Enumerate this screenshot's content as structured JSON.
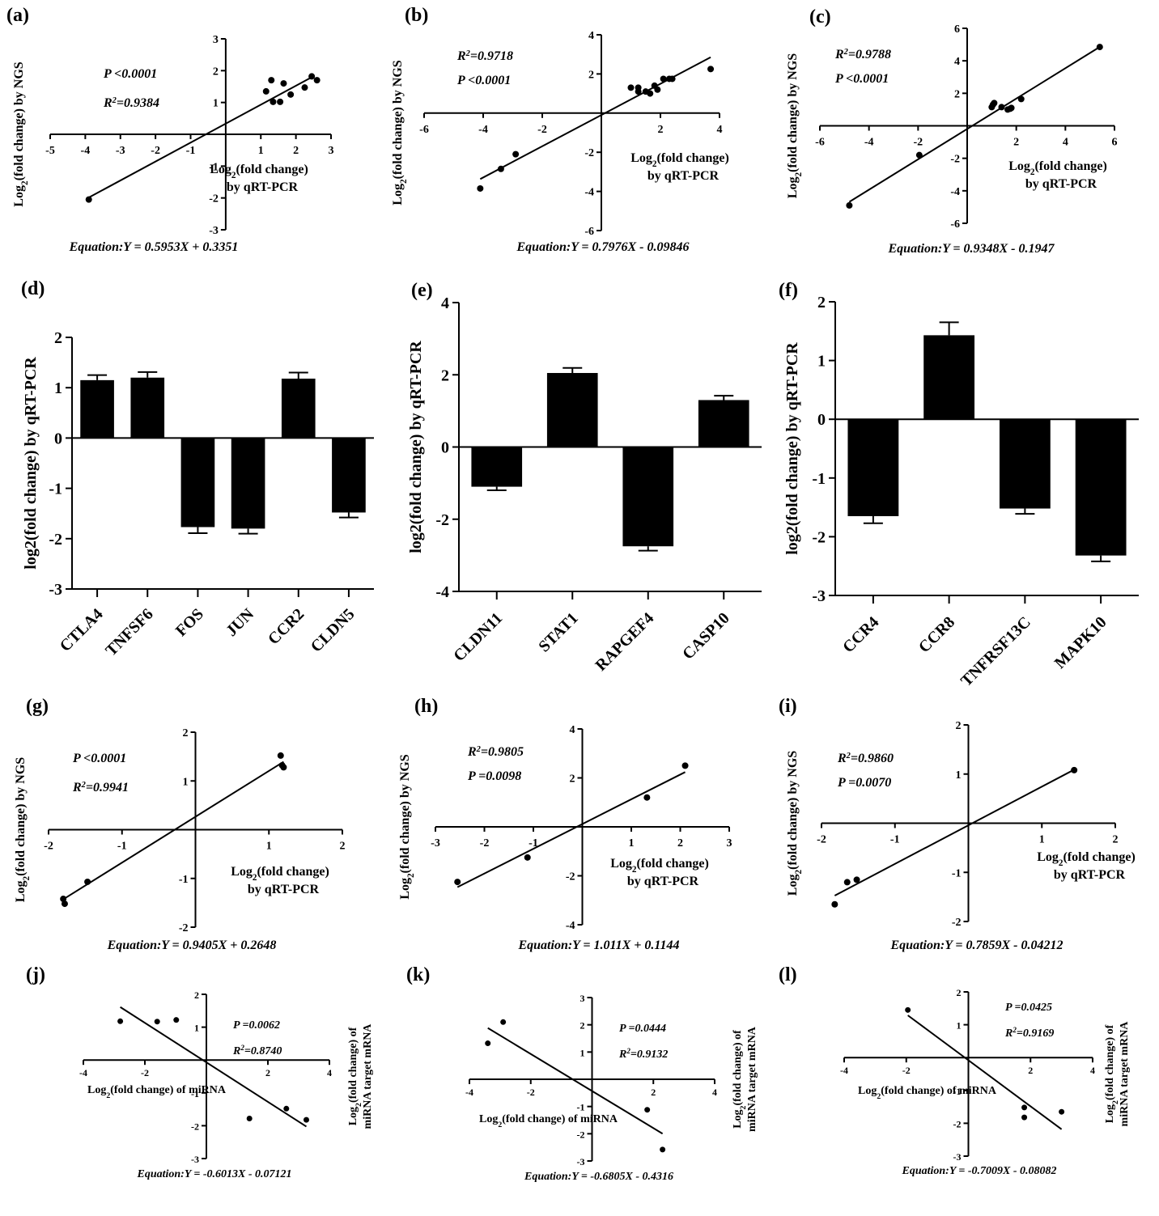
{
  "figure": {
    "colors": {
      "ink": "#000000",
      "background": "#ffffff"
    }
  },
  "chart_data": [
    {
      "id": "a",
      "panel_label": "(a)",
      "type": "scatter",
      "xlabel_main": "Log",
      "xlabel_sub": "2",
      "xlabel_rest": "(fold change)",
      "xlabel_line2": "by qRT-PCR",
      "ylabel_main": "Log",
      "ylabel_sub": "2",
      "ylabel_rest": "(fold change) by NGS",
      "xlim": [
        -5,
        3
      ],
      "ylim": [
        -3,
        3
      ],
      "xticks": [
        -5,
        -4,
        -3,
        -2,
        -1,
        1,
        2,
        3
      ],
      "yticks": [
        -3,
        -2,
        -1,
        1,
        2,
        3
      ],
      "stats": [
        "P <0.0001",
        "R²=0.9384"
      ],
      "equation": "Equation:Y = 0.5953X + 0.3351",
      "fit": {
        "slope": 0.5953,
        "intercept": 0.3351,
        "x_range": [
          -3.9,
          2.5
        ]
      },
      "points": [
        [
          -3.9,
          -2.05
        ],
        [
          1.15,
          1.35
        ],
        [
          1.3,
          1.7
        ],
        [
          1.35,
          1.02
        ],
        [
          1.55,
          1.02
        ],
        [
          1.65,
          1.6
        ],
        [
          1.85,
          1.25
        ],
        [
          2.25,
          1.47
        ],
        [
          2.45,
          1.82
        ],
        [
          2.6,
          1.7
        ]
      ]
    },
    {
      "id": "b",
      "panel_label": "(b)",
      "type": "scatter",
      "xlabel_main": "Log",
      "xlabel_sub": "2",
      "xlabel_rest": "(fold change)",
      "xlabel_line2": "by qRT-PCR",
      "ylabel_main": "Log",
      "ylabel_sub": "2",
      "ylabel_rest": "(fold change) by NGS",
      "xlim": [
        -6,
        4
      ],
      "ylim": [
        -6,
        4
      ],
      "xticks": [
        -6,
        -4,
        -2,
        2,
        4
      ],
      "yticks": [
        -6,
        -4,
        -2,
        2,
        4
      ],
      "stats": [
        "R²=0.9718",
        "P <0.0001"
      ],
      "equation": "Equation:Y = 0.7976X - 0.09846",
      "fit": {
        "slope": 0.7976,
        "intercept": -0.09846,
        "x_range": [
          -4.1,
          3.7
        ]
      },
      "points": [
        [
          -4.1,
          -3.85
        ],
        [
          -3.4,
          -2.85
        ],
        [
          -2.9,
          -2.1
        ],
        [
          1.0,
          1.3
        ],
        [
          1.25,
          1.3
        ],
        [
          1.25,
          1.1
        ],
        [
          1.5,
          1.1
        ],
        [
          1.65,
          1.0
        ],
        [
          1.8,
          1.4
        ],
        [
          1.9,
          1.2
        ],
        [
          2.1,
          1.75
        ],
        [
          2.3,
          1.75
        ],
        [
          2.4,
          1.75
        ],
        [
          3.7,
          2.25
        ]
      ]
    },
    {
      "id": "c",
      "panel_label": "(c)",
      "type": "scatter",
      "xlabel_main": "Log",
      "xlabel_sub": "2",
      "xlabel_rest": "(fold change)",
      "xlabel_line2": "by qRT-PCR",
      "ylabel_main": "Log",
      "ylabel_sub": "2",
      "ylabel_rest": "(fold change) by NGS",
      "xlim": [
        -6,
        6
      ],
      "ylim": [
        -6,
        6
      ],
      "xticks": [
        -6,
        -4,
        -2,
        2,
        4,
        6
      ],
      "yticks": [
        -6,
        -4,
        -2,
        2,
        4,
        6
      ],
      "stats": [
        "R²=0.9788",
        "P <0.0001"
      ],
      "equation": "Equation:Y = 0.9348X - 0.1947",
      "fit": {
        "slope": 0.9348,
        "intercept": -0.1947,
        "x_range": [
          -4.8,
          5.4
        ]
      },
      "points": [
        [
          -4.8,
          -4.9
        ],
        [
          -1.95,
          -1.8
        ],
        [
          1.0,
          1.15
        ],
        [
          1.05,
          1.3
        ],
        [
          1.1,
          1.4
        ],
        [
          1.4,
          1.15
        ],
        [
          1.65,
          1.0
        ],
        [
          1.75,
          1.05
        ],
        [
          1.8,
          1.1
        ],
        [
          2.2,
          1.65
        ],
        [
          5.4,
          4.85
        ]
      ]
    },
    {
      "id": "d",
      "panel_label": "(d)",
      "type": "bar",
      "ylabel": "log2(fold change) by qRT-PCR",
      "ylim": [
        -3,
        2
      ],
      "yticks": [
        -3,
        -2,
        -1,
        0,
        1,
        2
      ],
      "categories": [
        "CTLA4",
        "TNFSF6",
        "FOS",
        "JUN",
        "CCR2",
        "CLDN5"
      ],
      "values": [
        1.15,
        1.2,
        -1.77,
        -1.8,
        1.18,
        -1.48
      ],
      "errors": [
        0.1,
        0.11,
        0.12,
        0.1,
        0.12,
        0.1
      ]
    },
    {
      "id": "e",
      "panel_label": "(e)",
      "type": "bar",
      "ylabel": "log2(fold change) by qRT-PCR",
      "ylim": [
        -4,
        4
      ],
      "yticks": [
        -4,
        -2,
        0,
        2,
        4
      ],
      "categories": [
        "CLDN11",
        "STAT1",
        "RAPGEF4",
        "CASP10"
      ],
      "values": [
        -1.1,
        2.05,
        -2.75,
        1.3
      ],
      "errors": [
        0.1,
        0.14,
        0.12,
        0.12
      ]
    },
    {
      "id": "f",
      "panel_label": "(f)",
      "type": "bar",
      "ylabel": "log2(fold change) by qRT-PCR",
      "ylim": [
        -3,
        2
      ],
      "yticks": [
        -3,
        -2,
        -1,
        0,
        1,
        2
      ],
      "categories": [
        "CCR4",
        "CCR8",
        "TNFRSF13C",
        "MAPK10"
      ],
      "values": [
        -1.65,
        1.43,
        -1.52,
        -2.32
      ],
      "errors": [
        0.12,
        0.22,
        0.09,
        0.1
      ]
    },
    {
      "id": "g",
      "panel_label": "(g)",
      "type": "scatter",
      "xlabel_main": "Log",
      "xlabel_sub": "2",
      "xlabel_rest": "(fold change)",
      "xlabel_line2": "by qRT-PCR",
      "ylabel_main": "Log",
      "ylabel_sub": "2",
      "ylabel_rest": "(fold change) by NGS",
      "xlim": [
        -2,
        2
      ],
      "ylim": [
        -2,
        2
      ],
      "xticks": [
        -2,
        -1,
        1,
        2
      ],
      "yticks": [
        -2,
        -1,
        1,
        2
      ],
      "stats": [
        "P <0.0001",
        "R²=0.9941"
      ],
      "equation": "Equation:Y = 0.9405X + 0.2648",
      "fit": {
        "slope": 0.9405,
        "intercept": 0.2648,
        "x_range": [
          -1.8,
          1.2
        ]
      },
      "points": [
        [
          -1.8,
          -1.42
        ],
        [
          -1.78,
          -1.52
        ],
        [
          -1.47,
          -1.07
        ],
        [
          1.16,
          1.52
        ],
        [
          1.18,
          1.32
        ],
        [
          1.2,
          1.28
        ]
      ]
    },
    {
      "id": "h",
      "panel_label": "(h)",
      "type": "scatter",
      "xlabel_main": "Log",
      "xlabel_sub": "2",
      "xlabel_rest": "(fold change)",
      "xlabel_line2": "by qRT-PCR",
      "ylabel_main": "Log",
      "ylabel_sub": "2",
      "ylabel_rest": "(fold change) by NGS",
      "xlim": [
        -3,
        3
      ],
      "ylim": [
        -4,
        4
      ],
      "xticks": [
        -3,
        -2,
        -1,
        1,
        2,
        3
      ],
      "yticks": [
        -4,
        -2,
        2,
        4
      ],
      "stats": [
        "R²=0.9805",
        "P =0.0098"
      ],
      "equation": "Equation:Y = 1.011X + 0.1144",
      "fit": {
        "slope": 1.011,
        "intercept": 0.1144,
        "x_range": [
          -2.55,
          2.1
        ]
      },
      "points": [
        [
          -2.55,
          -2.25
        ],
        [
          -1.12,
          -1.25
        ],
        [
          1.32,
          1.2
        ],
        [
          2.1,
          2.5
        ]
      ]
    },
    {
      "id": "i",
      "panel_label": "(i)",
      "type": "scatter",
      "xlabel_main": "Log",
      "xlabel_sub": "2",
      "xlabel_rest": "(fold change)",
      "xlabel_line2": "by qRT-PCR",
      "ylabel_main": "Log",
      "ylabel_sub": "2",
      "ylabel_rest": "(fold change) by NGS",
      "xlim": [
        -2,
        2
      ],
      "ylim": [
        -2,
        2
      ],
      "xticks": [
        -2,
        -1,
        1,
        2
      ],
      "yticks": [
        -2,
        -1,
        1,
        2
      ],
      "stats": [
        "R²=0.9860",
        "P =0.0070"
      ],
      "equation": "Equation:Y = 0.7859X - 0.04212",
      "fit": {
        "slope": 0.7859,
        "intercept": -0.04212,
        "x_range": [
          -1.82,
          1.44
        ]
      },
      "points": [
        [
          -1.82,
          -1.65
        ],
        [
          -1.65,
          -1.2
        ],
        [
          -1.52,
          -1.15
        ],
        [
          1.44,
          1.08
        ]
      ]
    },
    {
      "id": "j",
      "panel_label": "(j)",
      "type": "scatter",
      "xlabel_main": "Log",
      "xlabel_sub": "2",
      "xlabel_rest": "(fold change) of miRNA",
      "ylabel_main": "Log",
      "ylabel_sub": "2",
      "ylabel_rest": "(fold change) of",
      "ylabel_line2": "miRNA target mRNA",
      "xlim": [
        -4,
        4
      ],
      "ylim": [
        -3,
        2
      ],
      "xticks": [
        -4,
        -2,
        2,
        4
      ],
      "yticks": [
        -3,
        -2,
        -1,
        1,
        2
      ],
      "stats": [
        "P =0.0062",
        "R²=0.8740"
      ],
      "equation": "Equation:Y = -0.6013X - 0.07121",
      "fit": {
        "slope": -0.6013,
        "intercept": -0.07121,
        "x_range": [
          -2.8,
          3.25
        ]
      },
      "points": [
        [
          -2.8,
          1.18
        ],
        [
          -1.6,
          1.17
        ],
        [
          -0.98,
          1.22
        ],
        [
          1.4,
          -1.78
        ],
        [
          2.6,
          -1.48
        ],
        [
          3.25,
          -1.82
        ]
      ]
    },
    {
      "id": "k",
      "panel_label": "(k)",
      "type": "scatter",
      "xlabel_main": "Log",
      "xlabel_sub": "2",
      "xlabel_rest": "(fold change) of miRNA",
      "ylabel_main": "Log",
      "ylabel_sub": "2",
      "ylabel_rest": "(fold change) of",
      "ylabel_line2": "miRNA target mRNA",
      "xlim": [
        -4,
        4
      ],
      "ylim": [
        -3,
        3
      ],
      "xticks": [
        -4,
        -2,
        2,
        4
      ],
      "yticks": [
        -3,
        -2,
        -1,
        1,
        2,
        3
      ],
      "stats": [
        "P =0.0444",
        "R²=0.9132"
      ],
      "equation": "Equation:Y = -0.6805X - 0.4316",
      "fit": {
        "slope": -0.6805,
        "intercept": -0.4316,
        "x_range": [
          -3.4,
          2.3
        ]
      },
      "points": [
        [
          -3.4,
          1.32
        ],
        [
          -2.9,
          2.1
        ],
        [
          1.8,
          -1.12
        ],
        [
          2.3,
          -2.58
        ]
      ]
    },
    {
      "id": "l",
      "panel_label": "(l)",
      "type": "scatter",
      "xlabel_main": "Log",
      "xlabel_sub": "2",
      "xlabel_rest": "(fold change) of miRNA",
      "ylabel_main": "Log",
      "ylabel_sub": "2",
      "ylabel_rest": "(fold change) of",
      "ylabel_line2": "miRNA target mRNA",
      "xlim": [
        -4,
        4
      ],
      "ylim": [
        -3,
        2
      ],
      "xticks": [
        -4,
        -2,
        2,
        4
      ],
      "yticks": [
        -3,
        -2,
        -1,
        1,
        2
      ],
      "stats": [
        "P =0.0425",
        "R²=0.9169"
      ],
      "equation": "Equation:Y = -0.7009X - 0.08082",
      "fit": {
        "slope": -0.7009,
        "intercept": -0.08082,
        "x_range": [
          -1.95,
          3.0
        ]
      },
      "points": [
        [
          -1.95,
          1.45
        ],
        [
          1.8,
          -1.52
        ],
        [
          1.8,
          -1.82
        ],
        [
          3.0,
          -1.65
        ]
      ]
    }
  ]
}
